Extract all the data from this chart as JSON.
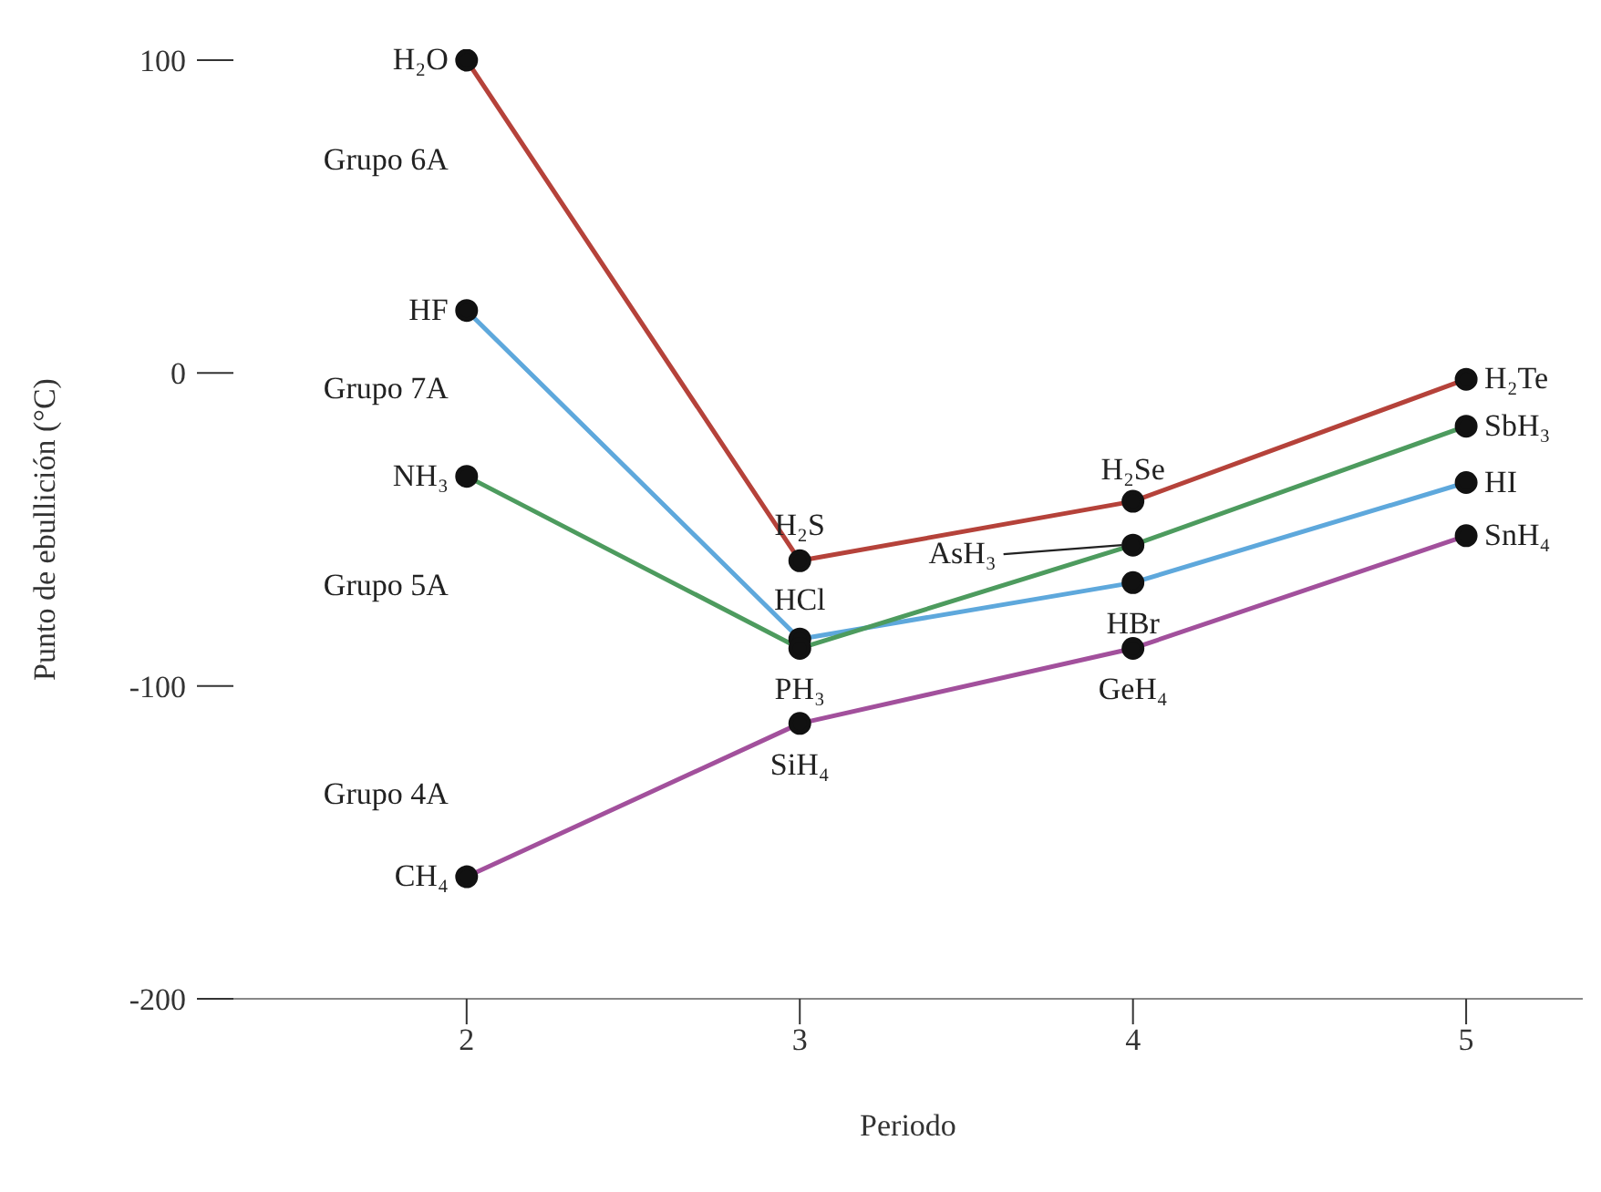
{
  "chart_data": {
    "type": "line",
    "xlabel": "Periodo",
    "ylabel": "Punto de ebullición (°C)",
    "x": [
      2,
      3,
      4,
      5
    ],
    "xlim": [
      1.3,
      5.35
    ],
    "xticks": [
      2,
      3,
      4,
      5
    ],
    "ylim": [
      -200,
      100
    ],
    "yticks": [
      100,
      0,
      -100,
      -200
    ],
    "grid": false,
    "marker": "circle",
    "line_style": "solid",
    "series": [
      {
        "name": "Grupo 6A",
        "color": "#b5423a",
        "values": [
          100,
          -60,
          -41,
          -2
        ]
      },
      {
        "name": "Grupo 7A",
        "color": "#5ea8dc",
        "values": [
          20,
          -85,
          -67,
          -35
        ]
      },
      {
        "name": "Grupo 5A",
        "color": "#4d9b5e",
        "values": [
          -33,
          -88,
          -55,
          -17
        ]
      },
      {
        "name": "Grupo 4A",
        "color": "#a2509c",
        "values": [
          -161,
          -112,
          -88,
          -52
        ]
      }
    ],
    "annotations": [
      {
        "text": "H₂O",
        "x": 2,
        "y": 100
      },
      {
        "text": "HF",
        "x": 2,
        "y": 20
      },
      {
        "text": "NH₃",
        "x": 2,
        "y": -33
      },
      {
        "text": "CH₄",
        "x": 2,
        "y": -161
      },
      {
        "text": "H₂S",
        "x": 3,
        "y": -60
      },
      {
        "text": "HCl",
        "x": 3,
        "y": -85
      },
      {
        "text": "PH₃",
        "x": 3,
        "y": -88
      },
      {
        "text": "SiH₄",
        "x": 3,
        "y": -112
      },
      {
        "text": "H₂Se",
        "x": 4,
        "y": -41
      },
      {
        "text": "AsH₃",
        "x": 4,
        "y": -55
      },
      {
        "text": "HBr",
        "x": 4,
        "y": -67
      },
      {
        "text": "GeH₄",
        "x": 4,
        "y": -88
      },
      {
        "text": "H₂Te",
        "x": 5,
        "y": -2
      },
      {
        "text": "SbH₃",
        "x": 5,
        "y": -17
      },
      {
        "text": "HI",
        "x": 5,
        "y": -35
      },
      {
        "text": "SnH₄",
        "x": 5,
        "y": -52
      }
    ]
  }
}
